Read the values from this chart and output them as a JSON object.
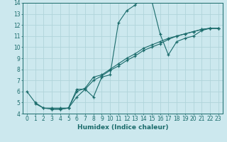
{
  "xlabel": "Humidex (Indice chaleur)",
  "xlim": [
    -0.5,
    23.5
  ],
  "ylim": [
    4,
    14
  ],
  "yticks": [
    4,
    5,
    6,
    7,
    8,
    9,
    10,
    11,
    12,
    13,
    14
  ],
  "xticks": [
    0,
    1,
    2,
    3,
    4,
    5,
    6,
    7,
    8,
    9,
    10,
    11,
    12,
    13,
    14,
    15,
    16,
    17,
    18,
    19,
    20,
    21,
    22,
    23
  ],
  "bg_color": "#cce8ee",
  "line_color": "#1a6b6b",
  "grid_color": "#b0d4da",
  "line1_x": [
    0,
    1,
    2,
    3,
    4,
    5,
    6,
    7,
    8,
    9,
    10,
    11,
    12,
    13,
    14,
    15,
    16,
    17,
    18,
    19,
    20,
    21,
    22,
    23
  ],
  "line1_y": [
    6.0,
    5.0,
    4.5,
    4.5,
    4.5,
    4.5,
    6.2,
    6.2,
    5.5,
    7.3,
    7.5,
    12.2,
    13.3,
    13.8,
    14.5,
    14.2,
    11.2,
    9.3,
    10.5,
    10.8,
    11.0,
    11.5,
    11.7,
    11.7
  ],
  "line2_x": [
    1,
    2,
    3,
    4,
    5,
    6,
    7,
    8,
    9,
    10,
    11,
    12,
    13,
    14,
    15,
    16,
    17,
    18,
    19,
    20,
    21,
    22,
    23
  ],
  "line2_y": [
    4.9,
    4.5,
    4.4,
    4.4,
    4.5,
    5.5,
    6.2,
    7.0,
    7.4,
    7.9,
    8.3,
    8.8,
    9.2,
    9.7,
    10.0,
    10.3,
    10.7,
    11.0,
    11.2,
    11.4,
    11.6,
    11.7,
    11.7
  ],
  "line3_x": [
    3,
    4,
    5,
    6,
    7,
    8,
    9,
    10,
    11,
    12,
    13,
    14,
    15,
    16,
    17,
    18,
    19,
    20,
    21,
    22,
    23
  ],
  "line3_y": [
    4.4,
    4.4,
    4.5,
    6.0,
    6.3,
    7.3,
    7.5,
    8.0,
    8.5,
    9.0,
    9.4,
    9.9,
    10.2,
    10.5,
    10.8,
    11.0,
    11.2,
    11.4,
    11.6,
    11.7,
    11.7
  ]
}
